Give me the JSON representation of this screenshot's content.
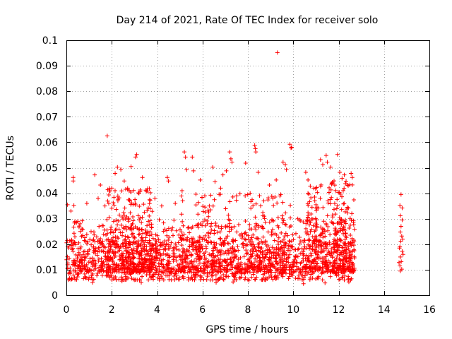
{
  "chart_data": {
    "type": "scatter",
    "title": "Day 214 of 2021, Rate Of TEC Index for receiver solo",
    "xlabel": "GPS time / hours",
    "ylabel": "ROTI / TECUs",
    "xlim": [
      0,
      16
    ],
    "ylim": [
      0,
      0.1
    ],
    "x_ticks": [
      "0",
      "2",
      "4",
      "6",
      "8",
      "10",
      "12",
      "14",
      "16"
    ],
    "y_ticks": [
      "0",
      "0.01",
      "0.02",
      "0.03",
      "0.04",
      "0.05",
      "0.06",
      "0.07",
      "0.08",
      "0.09",
      "0.1"
    ],
    "grid": true,
    "marker": "plus",
    "series": [
      {
        "name": "ROTI",
        "color": "#ff0000",
        "points": [
          [
            1.8,
            0.0625
          ],
          [
            9.3,
            0.0952
          ],
          [
            0.05,
            0.0355
          ],
          [
            0.3,
            0.0462
          ],
          [
            0.3,
            0.0448
          ],
          [
            0.33,
            0.0352
          ],
          [
            1.25,
            0.0472
          ],
          [
            1.5,
            0.0432
          ],
          [
            2.15,
            0.0478
          ],
          [
            2.25,
            0.0502
          ],
          [
            2.4,
            0.0493
          ],
          [
            2.55,
            0.0448
          ],
          [
            2.85,
            0.0505
          ],
          [
            3.05,
            0.0542
          ],
          [
            3.1,
            0.0552
          ],
          [
            3.35,
            0.0462
          ],
          [
            3.5,
            0.0412
          ],
          [
            3.7,
            0.0402
          ],
          [
            4.45,
            0.0462
          ],
          [
            4.5,
            0.0448
          ],
          [
            5.2,
            0.0562
          ],
          [
            5.25,
            0.0542
          ],
          [
            5.3,
            0.0492
          ],
          [
            5.55,
            0.0542
          ],
          [
            5.6,
            0.0488
          ],
          [
            5.9,
            0.0452
          ],
          [
            6.45,
            0.0502
          ],
          [
            6.55,
            0.0445
          ],
          [
            6.9,
            0.0472
          ],
          [
            7.05,
            0.0488
          ],
          [
            7.2,
            0.0562
          ],
          [
            7.25,
            0.0535
          ],
          [
            7.3,
            0.0522
          ],
          [
            7.65,
            0.0398
          ],
          [
            7.9,
            0.0518
          ],
          [
            8.3,
            0.0588
          ],
          [
            8.33,
            0.0575
          ],
          [
            8.35,
            0.0562
          ],
          [
            8.45,
            0.0482
          ],
          [
            8.95,
            0.0432
          ],
          [
            9.25,
            0.0452
          ],
          [
            9.55,
            0.0522
          ],
          [
            9.65,
            0.0512
          ],
          [
            9.85,
            0.0592
          ],
          [
            9.9,
            0.0578
          ],
          [
            9.93,
            0.058
          ],
          [
            9.7,
            0.0492
          ],
          [
            10.55,
            0.0482
          ],
          [
            10.65,
            0.0452
          ],
          [
            10.75,
            0.0428
          ],
          [
            11.2,
            0.0532
          ],
          [
            11.3,
            0.0512
          ],
          [
            11.45,
            0.0548
          ],
          [
            11.5,
            0.0522
          ],
          [
            11.65,
            0.0502
          ],
          [
            11.95,
            0.0552
          ],
          [
            12.05,
            0.0482
          ],
          [
            12.25,
            0.0472
          ],
          [
            12.4,
            0.0432
          ],
          [
            12.55,
            0.0478
          ],
          [
            12.6,
            0.0462
          ],
          [
            12.15,
            0.0458
          ],
          [
            14.75,
            0.0395
          ],
          [
            14.7,
            0.0352
          ],
          [
            14.8,
            0.0342
          ],
          [
            14.72,
            0.0312
          ],
          [
            14.8,
            0.0295
          ],
          [
            14.75,
            0.027
          ],
          [
            14.72,
            0.0248
          ],
          [
            14.78,
            0.0232
          ],
          [
            14.74,
            0.0212
          ],
          [
            14.7,
            0.019
          ],
          [
            14.8,
            0.0172
          ],
          [
            14.72,
            0.015
          ],
          [
            14.76,
            0.0132
          ],
          [
            14.7,
            0.0115
          ],
          [
            14.78,
            0.0102
          ],
          [
            14.72,
            0.0095
          ],
          [
            14.68,
            0.0185
          ],
          [
            14.82,
            0.022
          ],
          [
            14.66,
            0.0128
          ],
          [
            14.84,
            0.016
          ],
          [
            0.2,
            0.033
          ],
          [
            0.6,
            0.028
          ],
          [
            0.9,
            0.036
          ],
          [
            1.4,
            0.038
          ],
          [
            1.7,
            0.035
          ],
          [
            2.0,
            0.042
          ],
          [
            2.7,
            0.042
          ],
          [
            3.2,
            0.04
          ],
          [
            3.9,
            0.038
          ],
          [
            4.2,
            0.035
          ],
          [
            4.8,
            0.036
          ],
          [
            5.1,
            0.041
          ],
          [
            6.1,
            0.039
          ],
          [
            6.3,
            0.035
          ],
          [
            6.8,
            0.042
          ],
          [
            7.5,
            0.039
          ],
          [
            8.1,
            0.04
          ],
          [
            8.7,
            0.037
          ],
          [
            9.1,
            0.038
          ],
          [
            9.45,
            0.0395
          ],
          [
            10.2,
            0.03
          ],
          [
            10.9,
            0.042
          ],
          [
            11.7,
            0.044
          ],
          [
            12.2,
            0.041
          ],
          [
            1.15,
            0.005
          ],
          [
            2.45,
            0.0055
          ],
          [
            3.3,
            0.005
          ],
          [
            4.1,
            0.006
          ],
          [
            5.65,
            0.006
          ],
          [
            6.6,
            0.005
          ],
          [
            7.35,
            0.0052
          ],
          [
            8.05,
            0.0058
          ],
          [
            9.1,
            0.0062
          ],
          [
            10.45,
            0.0045
          ],
          [
            11.4,
            0.0048
          ],
          [
            12.45,
            0.0052
          ]
        ],
        "dense_bands": [
          {
            "x_range": [
              0.0,
              12.7
            ],
            "y_range": [
              0.009,
              0.022
            ]
          },
          {
            "x_range": [
              0.0,
              12.7
            ],
            "y_range": [
              0.006,
              0.03
            ]
          },
          {
            "x_range": [
              1.8,
              3.8
            ],
            "y_range": [
              0.01,
              0.042
            ]
          },
          {
            "x_range": [
              5.0,
              9.9
            ],
            "y_range": [
              0.01,
              0.04
            ]
          },
          {
            "x_range": [
              10.6,
              12.7
            ],
            "y_range": [
              0.01,
              0.045
            ]
          }
        ]
      }
    ]
  }
}
